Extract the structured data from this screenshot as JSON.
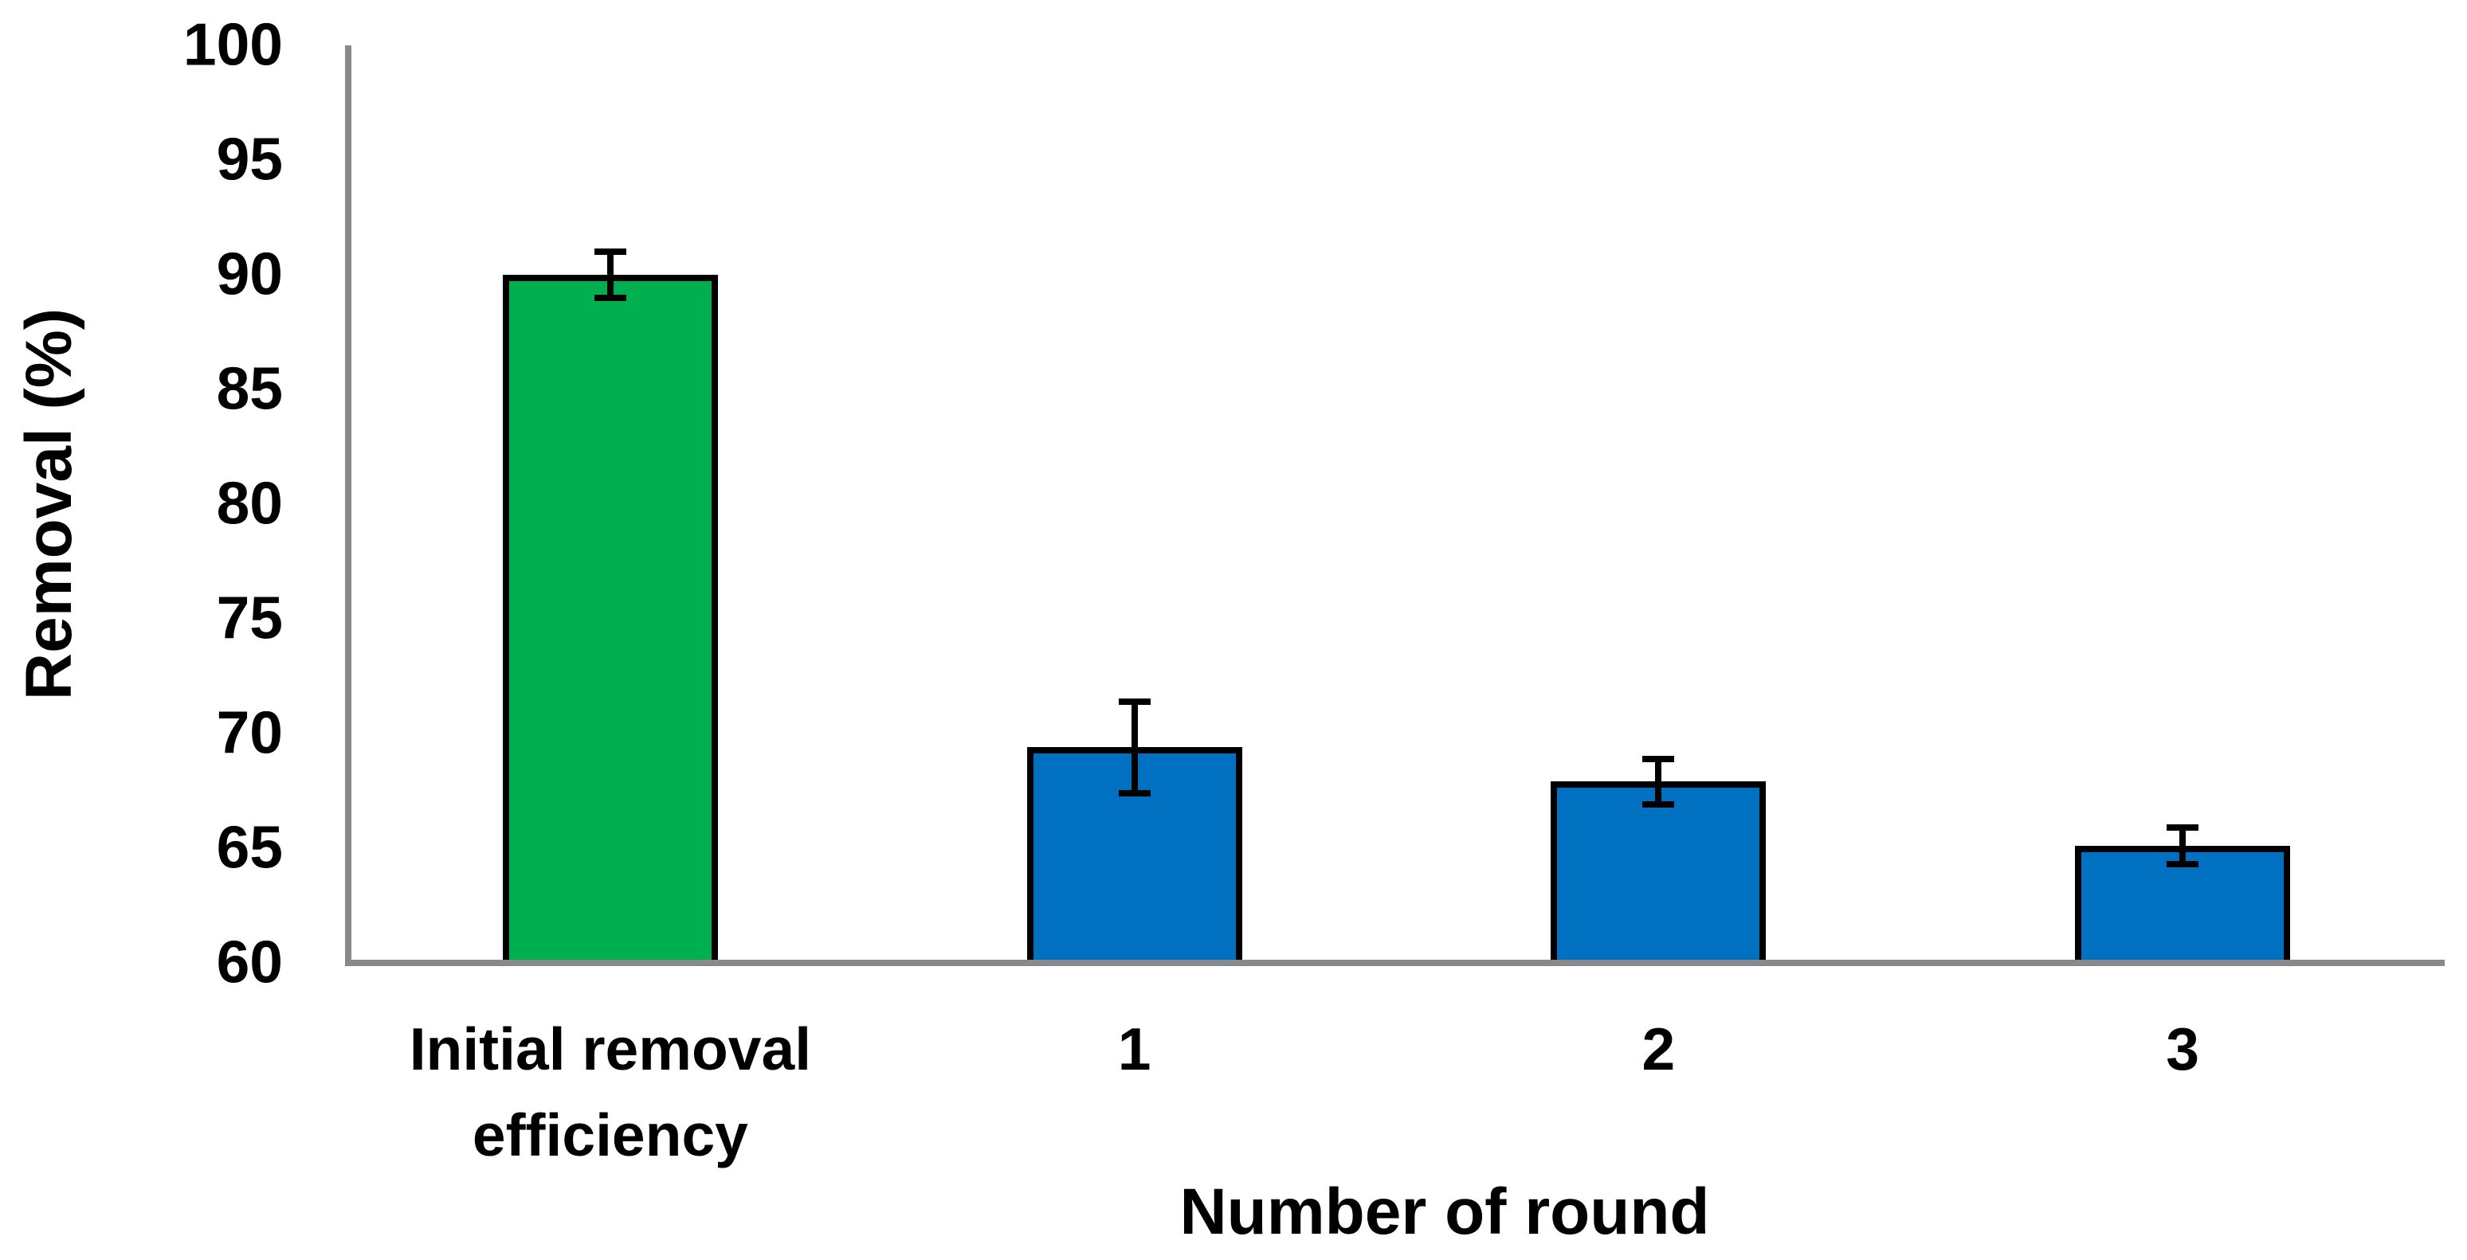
{
  "chart_data": {
    "type": "bar",
    "title": "",
    "xlabel": "Number of round",
    "ylabel": "Removal (%)",
    "categories": [
      "Initial removal\nefficiency",
      "1",
      "2",
      "3"
    ],
    "values": [
      90,
      69.4,
      67.9,
      65.1
    ],
    "error_bars": [
      1.0,
      2.0,
      1.0,
      0.8
    ],
    "bar_colors": [
      "#00B050",
      "#0070C0",
      "#0070C0",
      "#0070C0"
    ],
    "bar_border_color": "#000000",
    "error_bar_color": "#000000",
    "axis_line_color": "#898989",
    "text_color": "#000000",
    "background_color": "#ffffff",
    "ylim": [
      60,
      100
    ],
    "yticks": [
      60,
      65,
      70,
      75,
      80,
      85,
      90,
      95,
      100
    ],
    "grid": false,
    "legend_position": "none"
  }
}
